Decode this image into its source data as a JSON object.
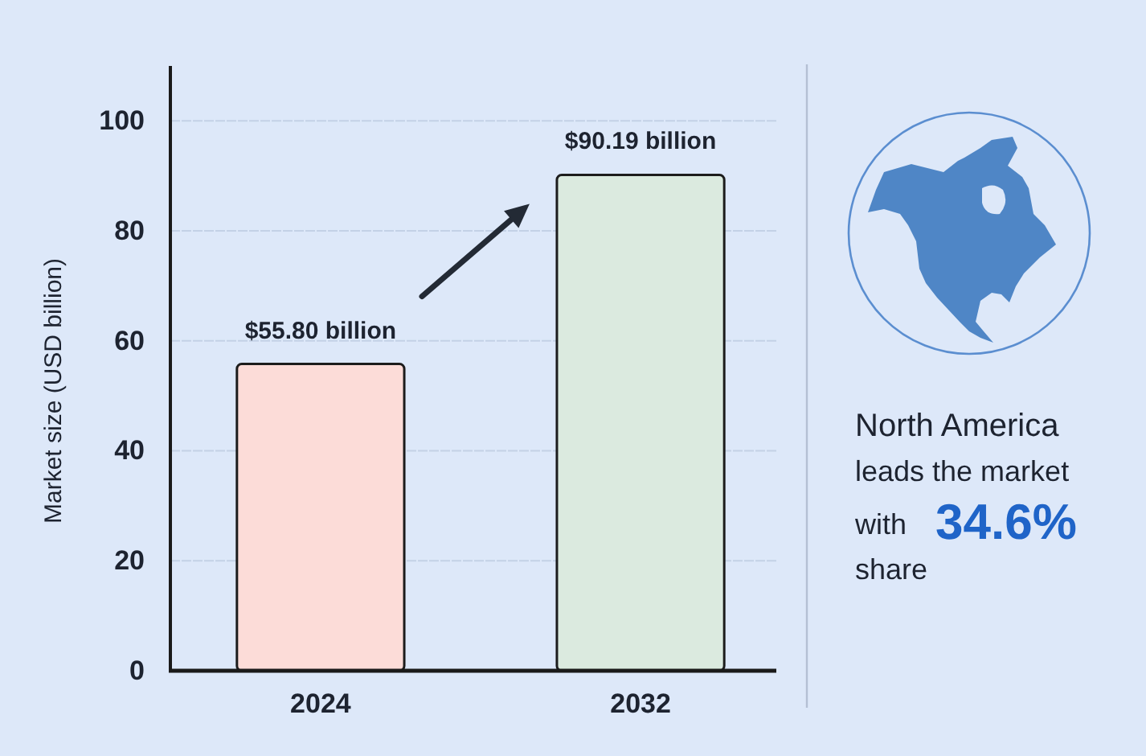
{
  "chart_data": {
    "type": "bar",
    "categories": [
      "2024",
      "2032"
    ],
    "values": [
      55.8,
      90.19
    ],
    "colors": [
      "#fcdcd8",
      "#dbeadf"
    ],
    "value_labels": [
      "$55.80 billion",
      "$90.19 billion"
    ],
    "ylabel": "Market size (USD billion)",
    "ylim": [
      0,
      110
    ],
    "yticks": [
      0,
      20,
      40,
      60,
      80,
      100
    ],
    "grid": "y",
    "annotations": [
      "North America",
      "leads the market",
      "with",
      "34.6%",
      "share"
    ]
  }
}
